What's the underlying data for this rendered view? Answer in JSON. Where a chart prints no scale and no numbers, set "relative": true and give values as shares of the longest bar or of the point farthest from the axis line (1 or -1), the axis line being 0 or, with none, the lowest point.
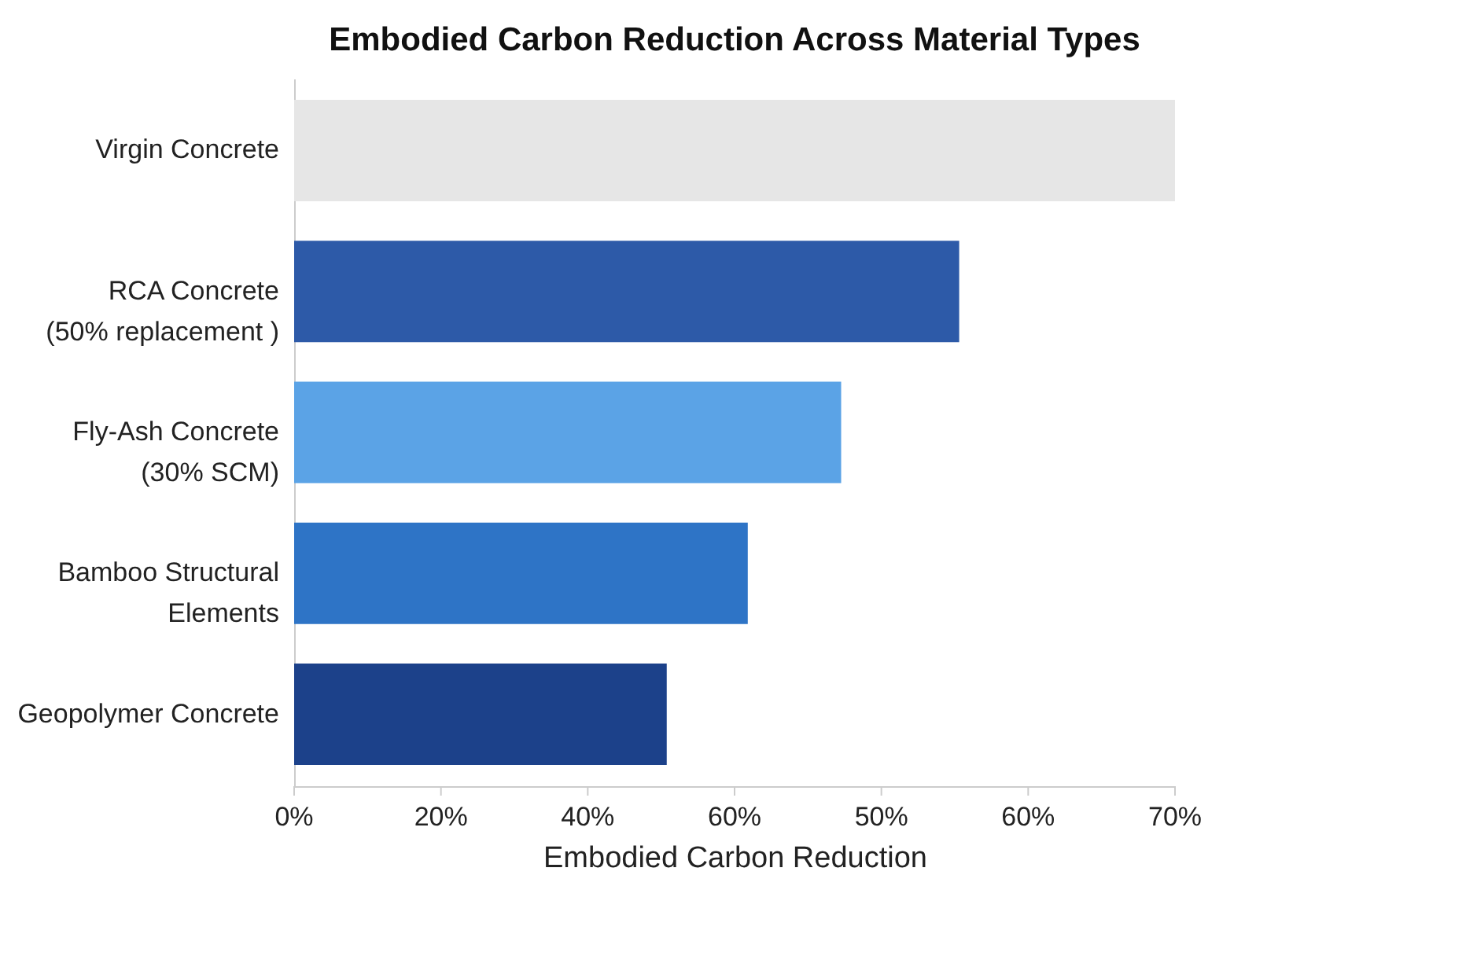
{
  "chart_data": {
    "type": "bar",
    "orientation": "horizontal",
    "relative": true,
    "title": "Embodied Carbon Reduction Across Material Types",
    "xlabel": "Embodied Carbon Reduction",
    "categories": [
      "Virgin Concrete",
      "RCA Concrete\n(50% replacement )",
      "Fly-Ash Concrete\n(30% SCM)",
      "Bamboo Structural\nElements",
      "Geopolymer Concrete"
    ],
    "values": [
      1,
      0.755,
      0.621,
      0.515,
      0.423
    ],
    "colors": [
      "#e6e6e6",
      "#2d5aa8",
      "#5ba3e6",
      "#2e74c6",
      "#1c418a"
    ],
    "annotations": [
      "0%",
      "20%",
      "40%",
      "60%",
      "50%",
      "60%",
      "70%"
    ]
  }
}
